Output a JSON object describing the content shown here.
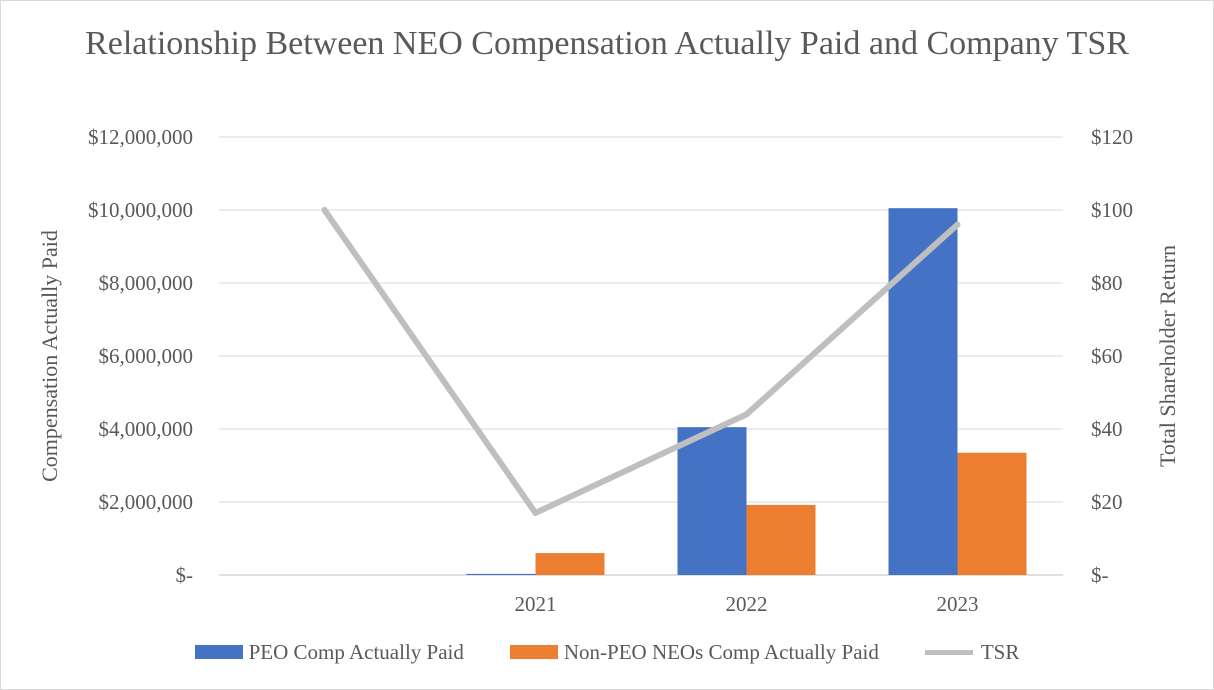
{
  "chart_data": {
    "type": "bar",
    "title": "Relationship Between NEO Compensation Actually Paid and Company TSR",
    "categories": [
      "",
      "2021",
      "2022",
      "2023"
    ],
    "series": [
      {
        "name": "PEO Comp Actually Paid",
        "type": "bar",
        "axis": "left",
        "color": "#4472C4",
        "values": [
          null,
          30000,
          4050000,
          10050000
        ]
      },
      {
        "name": "Non-PEO NEOs Comp Actually Paid",
        "type": "bar",
        "axis": "left",
        "color": "#ED7D31",
        "values": [
          null,
          600000,
          1920000,
          3350000
        ]
      },
      {
        "name": "TSR",
        "type": "line",
        "axis": "right",
        "color": "#BFBFBF",
        "values": [
          100,
          17,
          44,
          96
        ]
      }
    ],
    "ylabel": "Compensation Actually Paid",
    "y2label": "Total Shareholder Return",
    "xlabel": "",
    "ylim": [
      0,
      12000000
    ],
    "y2lim": [
      0,
      120
    ],
    "yticks": [
      "$-",
      "$2,000,000",
      "$4,000,000",
      "$6,000,000",
      "$8,000,000",
      "$10,000,000",
      "$12,000,000"
    ],
    "y2ticks": [
      "$-",
      "$20",
      "$40",
      "$60",
      "$80",
      "$100",
      "$120"
    ],
    "grid": true,
    "legend_position": "bottom"
  }
}
